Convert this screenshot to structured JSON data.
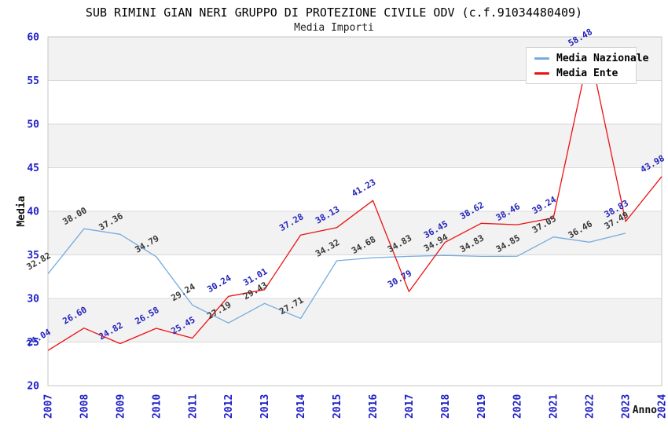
{
  "header": {
    "title": "SUB RIMINI GIAN NERI GRUPPO DI PROTEZIONE CIVILE ODV (c.f.91034480409)",
    "subtitle": "Media Importi"
  },
  "chart_data": {
    "type": "line",
    "title": "SUB RIMINI GIAN NERI GRUPPO DI PROTEZIONE CIVILE ODV (c.f.91034480409)",
    "subtitle": "Media Importi",
    "xlabel": "Anno",
    "ylabel": "Media",
    "x": [
      2007,
      2008,
      2009,
      2010,
      2011,
      2012,
      2013,
      2014,
      2015,
      2016,
      2017,
      2018,
      2019,
      2020,
      2021,
      2022,
      2023,
      2024
    ],
    "series": [
      {
        "name": "Media Nazionale",
        "color": "#75ACDF",
        "label_color": "#383838",
        "values": [
          32.82,
          38.0,
          37.36,
          34.79,
          29.24,
          27.19,
          29.43,
          27.71,
          34.32,
          34.68,
          34.83,
          34.94,
          34.83,
          34.85,
          37.05,
          36.46,
          37.49,
          null
        ]
      },
      {
        "name": "Media Ente",
        "color": "#ED1111",
        "label_color": "#2424BC",
        "values": [
          24.04,
          26.6,
          24.82,
          26.58,
          25.45,
          30.24,
          31.01,
          37.28,
          38.13,
          41.23,
          30.79,
          36.45,
          38.62,
          38.46,
          39.24,
          58.48,
          38.83,
          43.98
        ]
      }
    ],
    "ylim": [
      20,
      60
    ],
    "ytick_step": 5,
    "yticks": [
      20,
      25,
      30,
      35,
      40,
      45,
      50,
      55,
      60
    ],
    "grid": true,
    "band_color": "#F2F2F2",
    "gridline_color": "#D9D9D9",
    "border_color": "#C6C6C6",
    "tick_color": "#1F1FC8",
    "legend_position": "top-right"
  }
}
